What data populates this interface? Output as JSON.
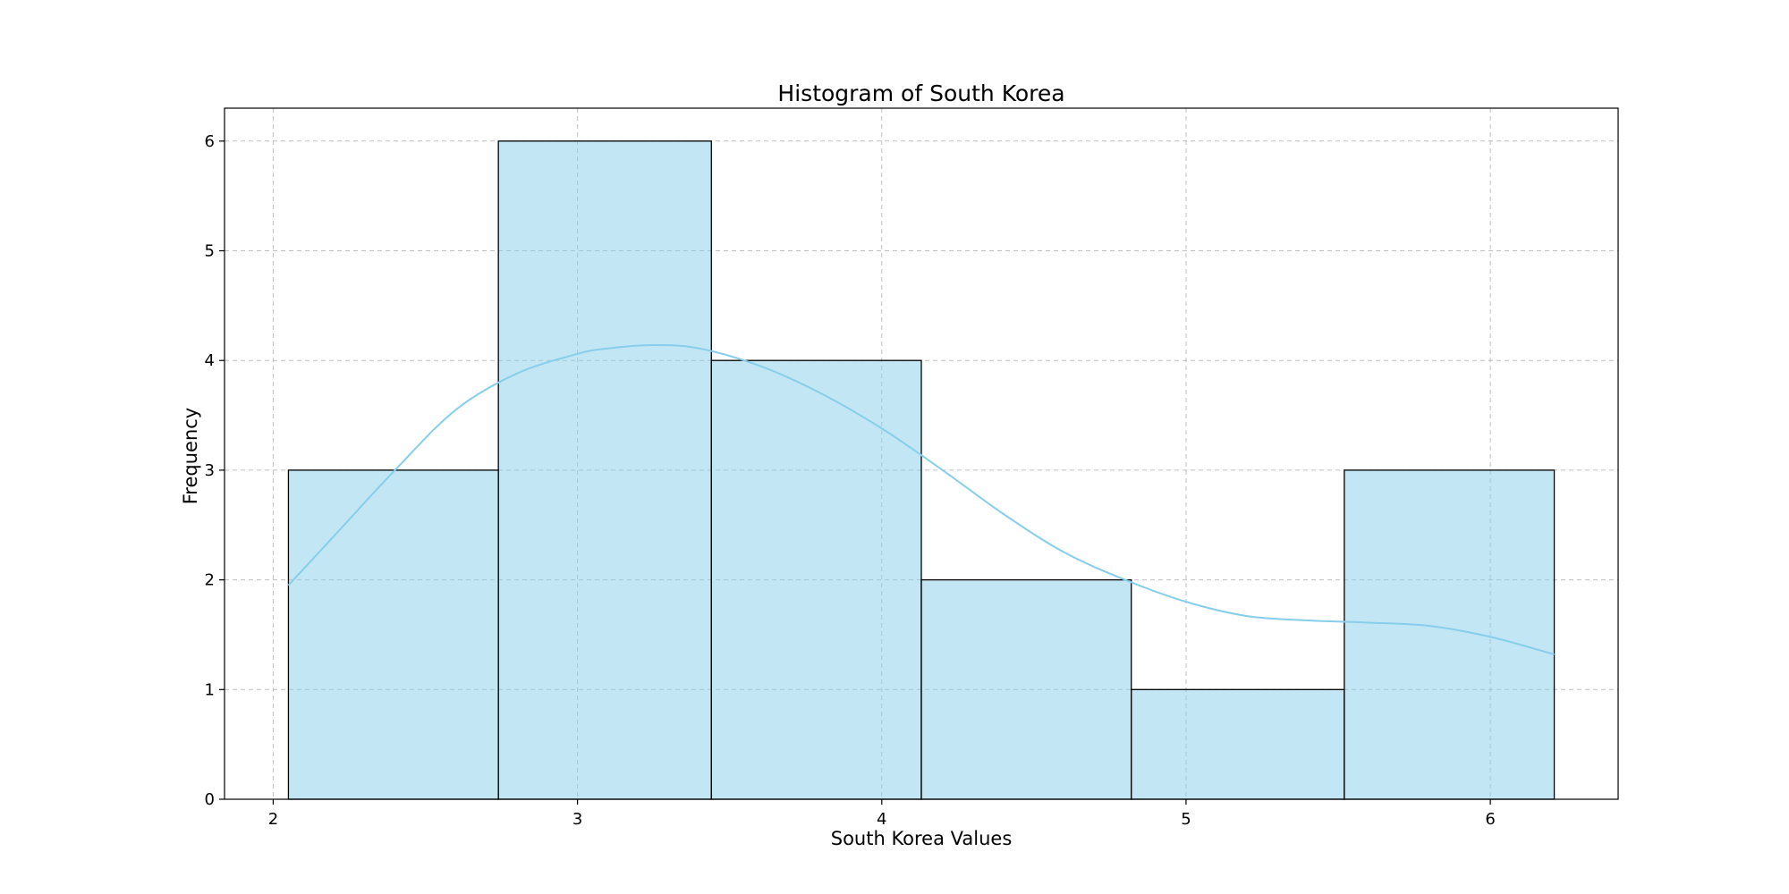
{
  "chart_data": {
    "type": "bar",
    "subtype": "histogram",
    "title": "Histogram of South Korea",
    "xlabel": "South Korea Values",
    "ylabel": "Frequency",
    "xlim": [
      1.84,
      6.42
    ],
    "ylim": [
      0,
      6.3
    ],
    "xticks": [
      2,
      3,
      4,
      5,
      6
    ],
    "yticks": [
      0,
      1,
      2,
      3,
      4,
      5,
      6
    ],
    "bins": [
      {
        "start": 2.05,
        "end": 2.74,
        "count": 3
      },
      {
        "start": 2.74,
        "end": 3.44,
        "count": 6
      },
      {
        "start": 3.44,
        "end": 4.13,
        "count": 4
      },
      {
        "start": 4.13,
        "end": 4.82,
        "count": 2
      },
      {
        "start": 4.82,
        "end": 5.52,
        "count": 1
      },
      {
        "start": 5.52,
        "end": 6.21,
        "count": 3
      }
    ],
    "kde": {
      "x": [
        2.05,
        2.2,
        2.4,
        2.6,
        2.8,
        3.0,
        3.1,
        3.25,
        3.4,
        3.6,
        3.8,
        4.0,
        4.2,
        4.4,
        4.6,
        4.8,
        5.0,
        5.2,
        5.4,
        5.6,
        5.8,
        6.0,
        6.21
      ],
      "y": [
        1.95,
        2.4,
        3.0,
        3.55,
        3.88,
        4.06,
        4.11,
        4.14,
        4.11,
        3.95,
        3.7,
        3.38,
        3.0,
        2.6,
        2.25,
        2.0,
        1.8,
        1.67,
        1.63,
        1.61,
        1.58,
        1.48,
        1.32
      ]
    },
    "grid": true,
    "legend": "none",
    "colors": {
      "bar_fill": "#87ceeb",
      "bar_edge": "#000000",
      "kde_line": "#87ceeb"
    }
  }
}
